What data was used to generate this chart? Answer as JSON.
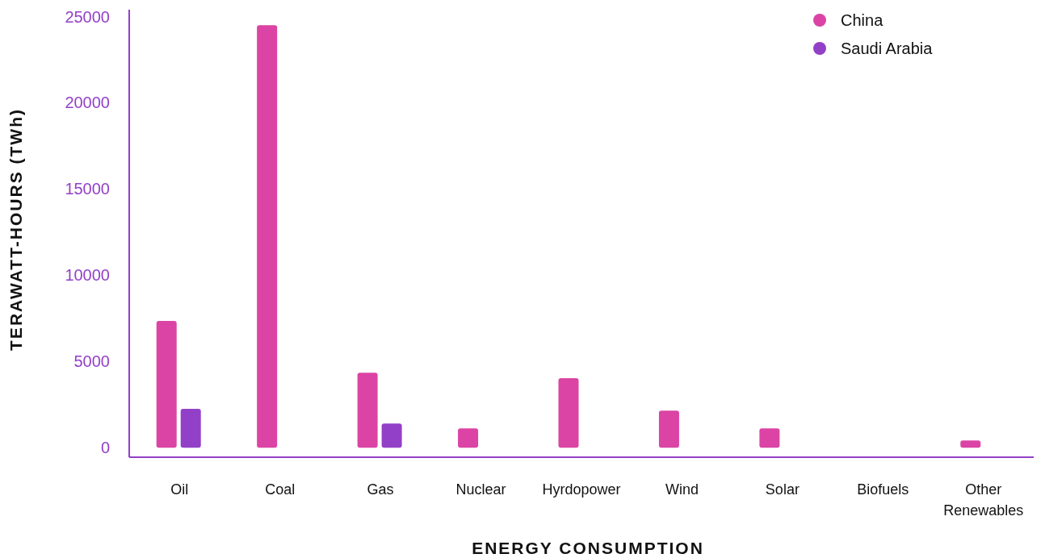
{
  "chart_data": {
    "type": "bar",
    "xlabel": "ENERGY CONSUMPTION",
    "ylabel": "TERAWATT-HOURS (TWh)",
    "categories": [
      "Oil",
      "Coal",
      "Gas",
      "Nuclear",
      "Hyrdopower",
      "Wind",
      "Solar",
      "Biofuels",
      "Other Renewables"
    ],
    "series": [
      {
        "name": "China",
        "color": "#db44a4",
        "values": [
          7350,
          24500,
          4350,
          1120,
          4030,
          2150,
          1120,
          null,
          420
        ]
      },
      {
        "name": "Saudi Arabia",
        "color": "#9340c8",
        "values": [
          2250,
          null,
          1400,
          null,
          null,
          null,
          null,
          null,
          null
        ]
      }
    ],
    "ylim": [
      -550,
      25400
    ],
    "yticks": [
      0,
      5000,
      10000,
      15000,
      20000,
      25000
    ],
    "grid": false,
    "legend": "top right"
  }
}
